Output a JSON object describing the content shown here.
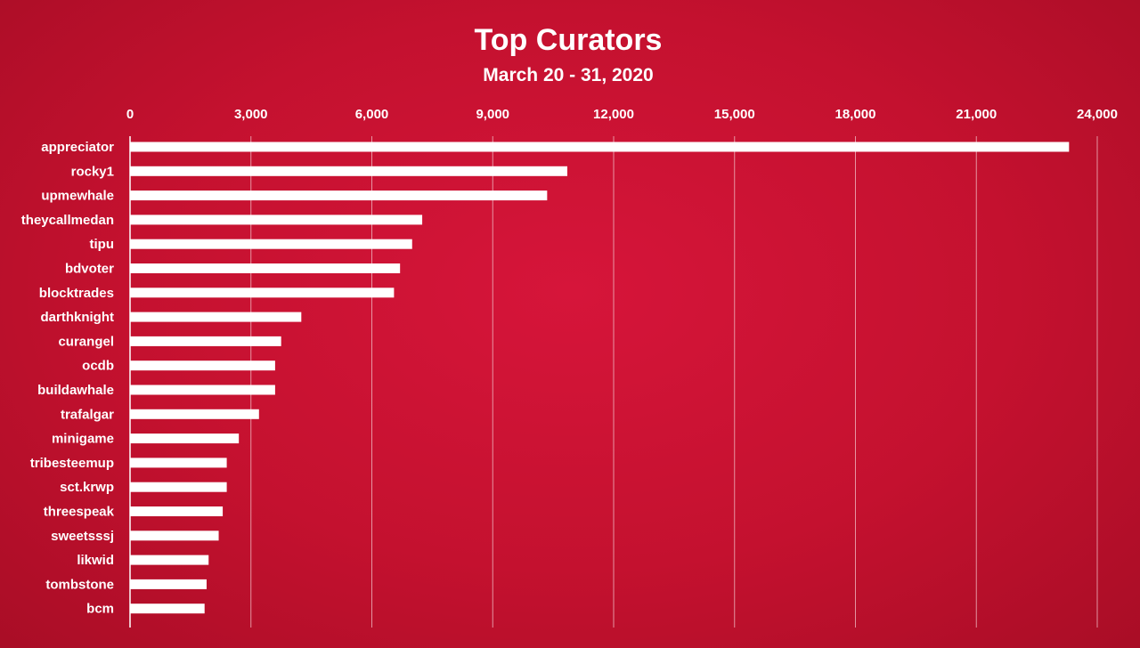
{
  "chart_data": {
    "type": "bar",
    "orientation": "horizontal",
    "title": "Top Curators",
    "subtitle": "March 20 - 31, 2020",
    "xlabel": "",
    "ylabel": "",
    "xlim": [
      0,
      24000
    ],
    "x_ticks": [
      0,
      3000,
      6000,
      9000,
      12000,
      15000,
      18000,
      21000,
      24000
    ],
    "x_tick_labels": [
      "0",
      "3,000",
      "6,000",
      "9,000",
      "12,000",
      "15,000",
      "18,000",
      "21,000",
      "24,000"
    ],
    "x_axis_position": "top",
    "grid": true,
    "legend": "none",
    "categories": [
      "appreciator",
      "rocky1",
      "upmewhale",
      "theycallmedan",
      "tipu",
      "bdvoter",
      "blocktrades",
      "darthknight",
      "curangel",
      "ocdb",
      "buildawhale",
      "trafalgar",
      "minigame",
      "tribesteemup",
      "sct.krwp",
      "threespeak",
      "sweetsssj",
      "likwid",
      "tombstone",
      "bcm"
    ],
    "values": [
      23300,
      10850,
      10350,
      7250,
      7000,
      6700,
      6550,
      4250,
      3750,
      3600,
      3600,
      3200,
      2700,
      2400,
      2400,
      2300,
      2200,
      1950,
      1900,
      1850
    ],
    "colors": {
      "background": "#c8102e",
      "bar": "#ffffff",
      "text": "#ffffff",
      "grid": "#f2c0c8"
    }
  }
}
